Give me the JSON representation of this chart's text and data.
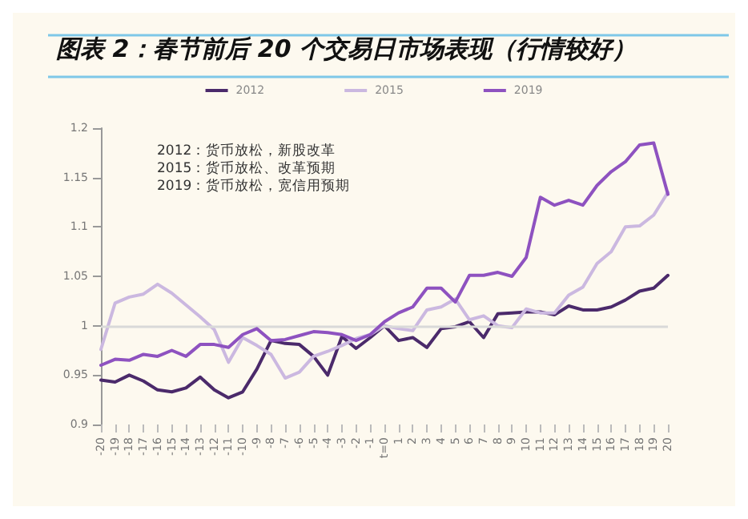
{
  "chart_data": {
    "type": "line",
    "title": "图表 2：春节前后 20 个交易日市场表现（行情较好）",
    "categories": [
      "-20",
      "-19",
      "-18",
      "-17",
      "-16",
      "-15",
      "-14",
      "-13",
      "-12",
      "-11",
      "-10",
      "-9",
      "-8",
      "-7",
      "-6",
      "-5",
      "-4",
      "-3",
      "-2",
      "-1",
      "t=0",
      "1",
      "2",
      "3",
      "4",
      "5",
      "6",
      "7",
      "8",
      "9",
      "10",
      "11",
      "12",
      "13",
      "14",
      "15",
      "16",
      "17",
      "18",
      "19",
      "20"
    ],
    "series": [
      {
        "name": "2012",
        "color": "#4b2a6b",
        "values": [
          0.945,
          0.943,
          0.95,
          0.944,
          0.935,
          0.933,
          0.937,
          0.948,
          0.935,
          0.927,
          0.933,
          0.956,
          0.985,
          0.982,
          0.981,
          0.969,
          0.95,
          0.989,
          0.977,
          0.988,
          1.0,
          0.985,
          0.988,
          0.978,
          0.997,
          0.999,
          1.004,
          0.988,
          1.012,
          1.013,
          1.014,
          1.014,
          1.011,
          1.02,
          1.016,
          1.016,
          1.019,
          1.026,
          1.035,
          1.038,
          1.051
        ]
      },
      {
        "name": "2015",
        "color": "#cbb8e0",
        "values": [
          0.976,
          1.023,
          1.029,
          1.032,
          1.042,
          1.033,
          1.021,
          1.009,
          0.996,
          0.963,
          0.988,
          0.98,
          0.971,
          0.947,
          0.953,
          0.969,
          0.974,
          0.98,
          0.987,
          0.991,
          1.0,
          0.997,
          0.995,
          1.016,
          1.019,
          1.027,
          1.006,
          1.01,
          1.0,
          0.998,
          1.017,
          1.013,
          1.013,
          1.031,
          1.039,
          1.063,
          1.075,
          1.1,
          1.101,
          1.112,
          1.135
        ]
      },
      {
        "name": "2019",
        "color": "#8e52c0",
        "values": [
          0.96,
          0.966,
          0.965,
          0.971,
          0.969,
          0.975,
          0.969,
          0.981,
          0.981,
          0.978,
          0.991,
          0.997,
          0.985,
          0.986,
          0.99,
          0.994,
          0.993,
          0.991,
          0.985,
          0.991,
          1.004,
          1.013,
          1.019,
          1.038,
          1.038,
          1.024,
          1.051,
          1.051,
          1.054,
          1.05,
          1.069,
          1.13,
          1.122,
          1.127,
          1.122,
          1.142,
          1.156,
          1.166,
          1.183,
          1.185,
          1.133
        ]
      }
    ],
    "ylim": [
      0.9,
      1.2
    ],
    "yticks": [
      0.9,
      0.95,
      1,
      1.05,
      1.1,
      1.15,
      1.2
    ],
    "ref_lines": [
      {
        "axis": "y",
        "value": 1,
        "color": "#d9d9d9"
      }
    ],
    "annotations": [
      "2012：货币放松，新股改革",
      "2015：货币放松、改革预期",
      "2019：货币放松，宽信用预期"
    ],
    "legend": "top",
    "grid": false,
    "marker": "none",
    "line_style": "solid"
  }
}
